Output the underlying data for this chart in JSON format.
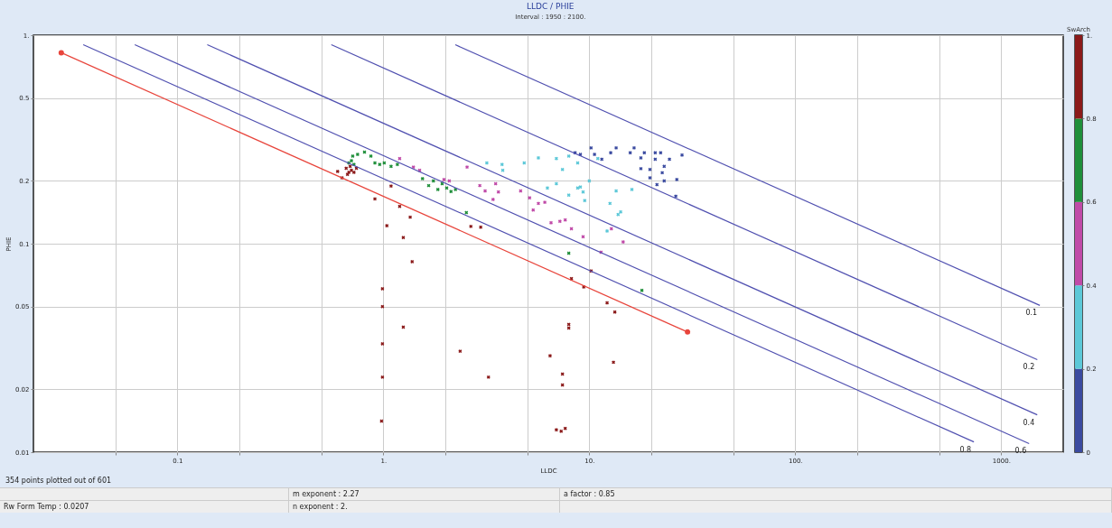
{
  "chart_data": {
    "type": "scatter",
    "title": "LLDC / PHIE",
    "subtitle": "Interval : 1950 : 2100.",
    "xlabel": "LLDC",
    "ylabel": "PHIE",
    "clabel": "SwArch",
    "log": "xy",
    "grid": true,
    "marker": "cross",
    "xlim": [
      0.02,
      2000
    ],
    "ylim": [
      0.01,
      1
    ],
    "xticks": [
      {
        "value": 0.05,
        "label": null
      },
      0.1,
      {
        "value": 0.2,
        "label": null
      },
      {
        "value": 0.5,
        "label": null
      },
      {
        "value": 1,
        "label": "1."
      },
      {
        "value": 2,
        "label": null
      },
      {
        "value": 5,
        "label": null
      },
      {
        "value": 10,
        "label": "10."
      },
      {
        "value": 20,
        "label": null
      },
      {
        "value": 50,
        "label": null
      },
      {
        "value": 100,
        "label": "100."
      },
      {
        "value": 200,
        "label": null
      },
      {
        "value": 500,
        "label": null
      },
      {
        "value": 1000,
        "label": "1000."
      }
    ],
    "yticks": [
      0.01,
      0.02,
      0.05,
      0.1,
      0.2,
      0.5,
      {
        "value": 1,
        "label": "1."
      }
    ],
    "clim": [
      0,
      1
    ],
    "colors": [
      "#3a4aa0",
      "#5cc8d8",
      "#c04aa8",
      "#1f8f3a",
      "#8b1a1a"
    ],
    "cticks": [
      0,
      0.2,
      0.4,
      0.6,
      0.8,
      {
        "value": 1,
        "label": "1."
      }
    ],
    "series": [
      {
        "color": "#3a4aa0",
        "x": [
          8.53,
          9.05,
          10.2,
          10.6,
          11.5,
          12.7,
          13.5,
          15.8,
          16.5,
          17.8,
          18.5,
          20.9,
          20.9,
          22.2,
          23.1,
          24.5,
          28.2,
          17.8,
          19.7,
          19.7,
          22.6,
          23.1,
          26.6,
          21.3,
          26.3
        ],
        "values": [
          0.273,
          0.268,
          0.288,
          0.268,
          0.254,
          0.273,
          0.288,
          0.273,
          0.288,
          0.258,
          0.273,
          0.273,
          0.254,
          0.273,
          0.235,
          0.254,
          0.266,
          0.229,
          0.227,
          0.207,
          0.219,
          0.2,
          0.203,
          0.192,
          0.169
        ]
      },
      {
        "color": "#5cc8d8",
        "x": [
          3.18,
          3.77,
          3.8,
          4.83,
          5.66,
          6.92,
          7.95,
          8.78,
          6.26,
          6.92,
          7.95,
          8.78,
          9.33,
          11.0,
          13.5,
          16.1,
          13.8,
          12.6,
          10.0,
          7.41,
          9.05,
          9.5,
          14.2,
          12.2
        ],
        "values": [
          0.244,
          0.24,
          0.225,
          0.244,
          0.258,
          0.256,
          0.263,
          0.244,
          0.185,
          0.194,
          0.171,
          0.185,
          0.177,
          0.256,
          0.179,
          0.182,
          0.138,
          0.156,
          0.2,
          0.227,
          0.187,
          0.161,
          0.142,
          0.115
        ]
      },
      {
        "color": "#c04aa8",
        "x": [
          1.2,
          1.4,
          1.5,
          1.97,
          2.09,
          2.55,
          2.94,
          3.12,
          3.51,
          3.62,
          3.41,
          4.64,
          5.13,
          5.34,
          5.66,
          6.08,
          6.52,
          7.2,
          7.64,
          8.19,
          9.33,
          12.8,
          14.6,
          11.4
        ],
        "values": [
          0.256,
          0.233,
          0.225,
          0.203,
          0.2,
          0.233,
          0.19,
          0.179,
          0.194,
          0.177,
          0.163,
          0.179,
          0.166,
          0.145,
          0.156,
          0.158,
          0.126,
          0.128,
          0.13,
          0.118,
          0.108,
          0.118,
          0.102,
          0.091
        ]
      },
      {
        "color": "#1f8f3a",
        "x": [
          0.68,
          0.71,
          0.75,
          0.81,
          0.87,
          0.91,
          0.96,
          1.01,
          1.09,
          1.17,
          1.55,
          1.66,
          1.75,
          1.84,
          1.93,
          2.03,
          2.13,
          2.24,
          0.7,
          0.72,
          2.53,
          7.95,
          18.0
        ],
        "values": [
          0.244,
          0.263,
          0.268,
          0.275,
          0.263,
          0.244,
          0.24,
          0.244,
          0.235,
          0.24,
          0.205,
          0.19,
          0.2,
          0.182,
          0.194,
          0.185,
          0.178,
          0.182,
          0.25,
          0.24,
          0.141,
          0.09,
          0.0597
        ]
      },
      {
        "color": "#8b1a1a",
        "x": [
          0.66,
          0.68,
          0.7,
          0.72,
          0.67,
          0.74,
          0.69,
          0.6,
          0.63,
          0.91,
          1.09,
          1.2,
          1.35,
          1.04,
          1.25,
          1.38,
          2.66,
          2.97,
          10.2,
          8.19,
          9.4,
          12.2,
          13.3,
          7.95,
          7.95,
          6.45,
          13.1,
          7.41,
          7.41,
          6.92,
          7.3,
          7.64,
          0.99,
          0.99,
          1.25,
          0.99,
          2.36,
          0.99,
          3.24,
          0.98
        ],
        "values": [
          0.23,
          0.22,
          0.225,
          0.22,
          0.215,
          0.23,
          0.235,
          0.222,
          0.207,
          0.164,
          0.189,
          0.151,
          0.134,
          0.122,
          0.107,
          0.082,
          0.121,
          0.12,
          0.074,
          0.068,
          0.062,
          0.052,
          0.047,
          0.041,
          0.0394,
          0.029,
          0.027,
          0.0237,
          0.021,
          0.0128,
          0.0126,
          0.013,
          0.0608,
          0.0499,
          0.0398,
          0.0331,
          0.0305,
          0.0229,
          0.0229,
          0.0141
        ]
      },
      {
        "type": "line",
        "color": "#e8453c",
        "marker": "circle",
        "x": [
          0.0273,
          30
        ],
        "values": [
          0.824,
          0.0377
        ]
      },
      {
        "type": "line",
        "name": "0.8",
        "color": "#5050b0",
        "marker": "none",
        "x": [
          0.0349,
          737
        ],
        "values": [
          0.9,
          0.0112
        ]
      },
      {
        "type": "line",
        "name": "0.6",
        "color": "#5050b0",
        "marker": "none",
        "x": [
          0.0621,
          1366
        ],
        "values": [
          0.9,
          0.011
        ]
      },
      {
        "type": "line",
        "name": "0.4",
        "color": "#5050b0",
        "marker": "none",
        "x": [
          0.1397,
          1496
        ],
        "values": [
          0.9,
          0.0151
        ]
      },
      {
        "type": "line",
        "name": "0.2",
        "color": "#5050b0",
        "marker": "none",
        "x": [
          0.559,
          1497
        ],
        "values": [
          0.9,
          0.0278
        ]
      },
      {
        "type": "line",
        "name": "0.1",
        "color": "#5050b0",
        "marker": "none",
        "x": [
          2.235,
          1540
        ],
        "values": [
          0.9,
          0.0506
        ]
      }
    ],
    "annotations": [
      "354 points plotted out of 601",
      "m exponent : 2.27",
      "a factor : 0.85",
      "Rw Form Temp : 0.0207",
      "n exponent : 2."
    ]
  }
}
